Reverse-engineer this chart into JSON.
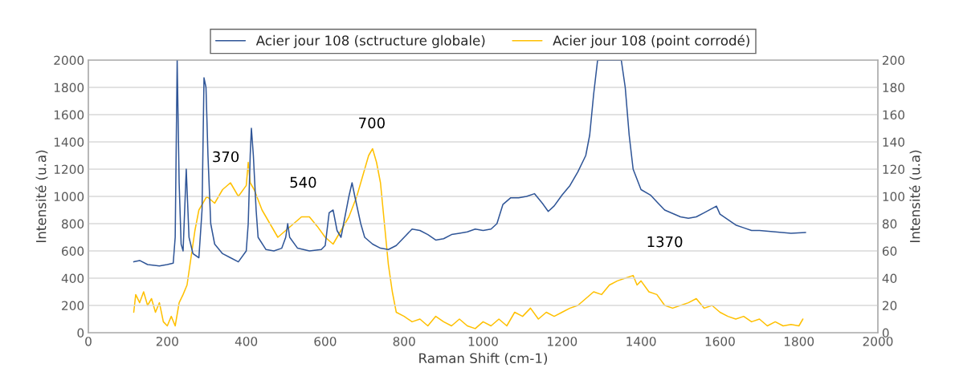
{
  "chart_data": {
    "type": "line",
    "xlabel": "Raman Shift (cm-1)",
    "ylabel": "Intensité (u.a)",
    "y2label": "Intensité (u.a)",
    "xlim": [
      0,
      2000
    ],
    "xticks": [
      0,
      200,
      400,
      600,
      800,
      1000,
      1200,
      1400,
      1600,
      1800,
      2000
    ],
    "ylim": [
      0,
      2000
    ],
    "yticks": [
      0,
      200,
      400,
      600,
      800,
      1000,
      1200,
      1400,
      1600,
      1800,
      2000
    ],
    "y2lim": [
      0,
      200
    ],
    "y2ticks": [
      0,
      20,
      40,
      60,
      80,
      100,
      120,
      140,
      160,
      180,
      200
    ],
    "grid": "y",
    "legend": "top",
    "marker": "none",
    "line_style": "solid",
    "annotations": [
      "370",
      "540",
      "700",
      "1370"
    ],
    "series": [
      {
        "name": "Acier jour 108 (sctructure globale)",
        "color": "#2f5597",
        "x": [
          115,
          130,
          150,
          180,
          200,
          215,
          220,
          225,
          230,
          235,
          240,
          248,
          255,
          265,
          280,
          288,
          293,
          298,
          303,
          310,
          320,
          340,
          360,
          380,
          400,
          405,
          410,
          413,
          418,
          425,
          430,
          450,
          470,
          490,
          500,
          505,
          510,
          530,
          560,
          590,
          600,
          610,
          620,
          630,
          640,
          650,
          660,
          668,
          675,
          690,
          700,
          720,
          740,
          760,
          780,
          800,
          820,
          840,
          860,
          880,
          900,
          920,
          940,
          960,
          980,
          1000,
          1020,
          1035,
          1050,
          1070,
          1090,
          1110,
          1130,
          1150,
          1165,
          1180,
          1200,
          1220,
          1240,
          1260,
          1270,
          1280,
          1290,
          1350,
          1360,
          1370,
          1380,
          1400,
          1424,
          1440,
          1460,
          1500,
          1520,
          1540,
          1560,
          1591,
          1600,
          1620,
          1640,
          1660,
          1680,
          1700,
          1740,
          1780,
          1817
        ],
        "values": [
          520,
          530,
          500,
          490,
          500,
          510,
          700,
          2000,
          1100,
          650,
          600,
          1200,
          700,
          580,
          550,
          900,
          1870,
          1800,
          1300,
          800,
          650,
          580,
          550,
          520,
          600,
          800,
          1300,
          1500,
          1300,
          900,
          700,
          610,
          600,
          620,
          700,
          800,
          700,
          620,
          600,
          610,
          640,
          880,
          900,
          750,
          700,
          850,
          1000,
          1100,
          1000,
          800,
          700,
          650,
          620,
          610,
          640,
          700,
          760,
          750,
          720,
          680,
          690,
          720,
          730,
          740,
          760,
          750,
          760,
          800,
          940,
          990,
          990,
          1000,
          1020,
          950,
          890,
          930,
          1010,
          1080,
          1180,
          1300,
          1450,
          1750,
          2000,
          2000,
          1800,
          1450,
          1200,
          1050,
          1010,
          960,
          900,
          850,
          840,
          850,
          880,
          929,
          870,
          830,
          790,
          770,
          750,
          750,
          740,
          730,
          735
        ]
      },
      {
        "name": "Acier jour 108 (point corrodé)",
        "color": "#ffc000",
        "axis": "y2",
        "x": [
          115,
          120,
          130,
          140,
          150,
          160,
          170,
          180,
          190,
          200,
          210,
          220,
          230,
          240,
          250,
          260,
          270,
          280,
          290,
          300,
          320,
          340,
          360,
          380,
          400,
          405,
          410,
          420,
          440,
          460,
          480,
          500,
          520,
          540,
          560,
          580,
          600,
          620,
          640,
          660,
          680,
          700,
          710,
          720,
          730,
          740,
          750,
          760,
          770,
          780,
          800,
          820,
          840,
          860,
          880,
          900,
          920,
          940,
          960,
          980,
          1000,
          1020,
          1040,
          1060,
          1080,
          1100,
          1120,
          1140,
          1160,
          1180,
          1200,
          1220,
          1240,
          1260,
          1280,
          1300,
          1320,
          1340,
          1360,
          1380,
          1390,
          1400,
          1420,
          1440,
          1460,
          1480,
          1500,
          1520,
          1540,
          1560,
          1580,
          1600,
          1620,
          1640,
          1660,
          1680,
          1700,
          1720,
          1740,
          1760,
          1780,
          1800,
          1810
        ],
        "values": [
          15,
          28,
          22,
          30,
          20,
          25,
          15,
          22,
          8,
          5,
          12,
          5,
          22,
          28,
          35,
          55,
          75,
          90,
          95,
          100,
          95,
          105,
          110,
          100,
          108,
          125,
          110,
          105,
          90,
          80,
          70,
          75,
          80,
          85,
          85,
          78,
          70,
          65,
          75,
          85,
          100,
          120,
          130,
          135,
          125,
          110,
          80,
          50,
          30,
          15,
          12,
          8,
          10,
          5,
          12,
          8,
          5,
          10,
          5,
          3,
          8,
          5,
          10,
          5,
          15,
          12,
          18,
          10,
          15,
          12,
          15,
          18,
          20,
          25,
          30,
          28,
          35,
          38,
          40,
          42,
          35,
          38,
          30,
          28,
          20,
          18,
          20,
          22,
          25,
          18,
          20,
          15,
          12,
          10,
          12,
          8,
          10,
          5,
          8,
          5,
          6,
          5,
          10
        ]
      }
    ]
  }
}
